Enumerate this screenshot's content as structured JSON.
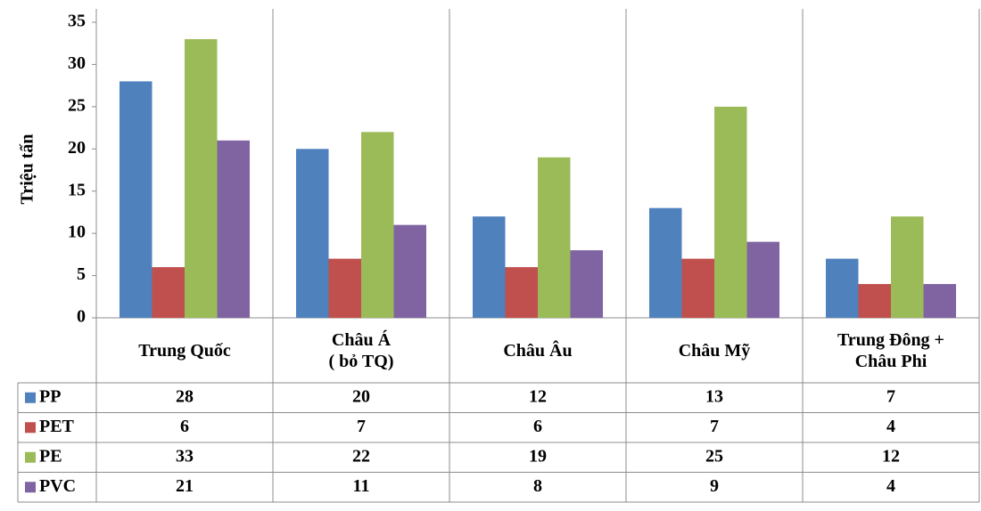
{
  "chart_data": {
    "type": "bar",
    "y_label": "Triệu tấn",
    "categories": [
      "Trung Quốc",
      "Châu Á\n( bỏ TQ)",
      "Châu Âu",
      "Châu Mỹ",
      "Trung Đông +\nChâu Phi"
    ],
    "series": [
      {
        "name": "PP",
        "color": "#4f81bd",
        "values": [
          28,
          20,
          12,
          13,
          7
        ]
      },
      {
        "name": "PET",
        "color": "#c0504d",
        "values": [
          6,
          7,
          6,
          7,
          4
        ]
      },
      {
        "name": "PE",
        "color": "#9bbb59",
        "values": [
          33,
          22,
          19,
          25,
          12
        ]
      },
      {
        "name": "PVC",
        "color": "#8064a2",
        "values": [
          21,
          11,
          8,
          9,
          4
        ]
      }
    ],
    "ylim": [
      0,
      35
    ],
    "yticks": [
      0,
      5,
      10,
      15,
      20,
      25,
      30,
      35
    ],
    "data_table": true
  }
}
